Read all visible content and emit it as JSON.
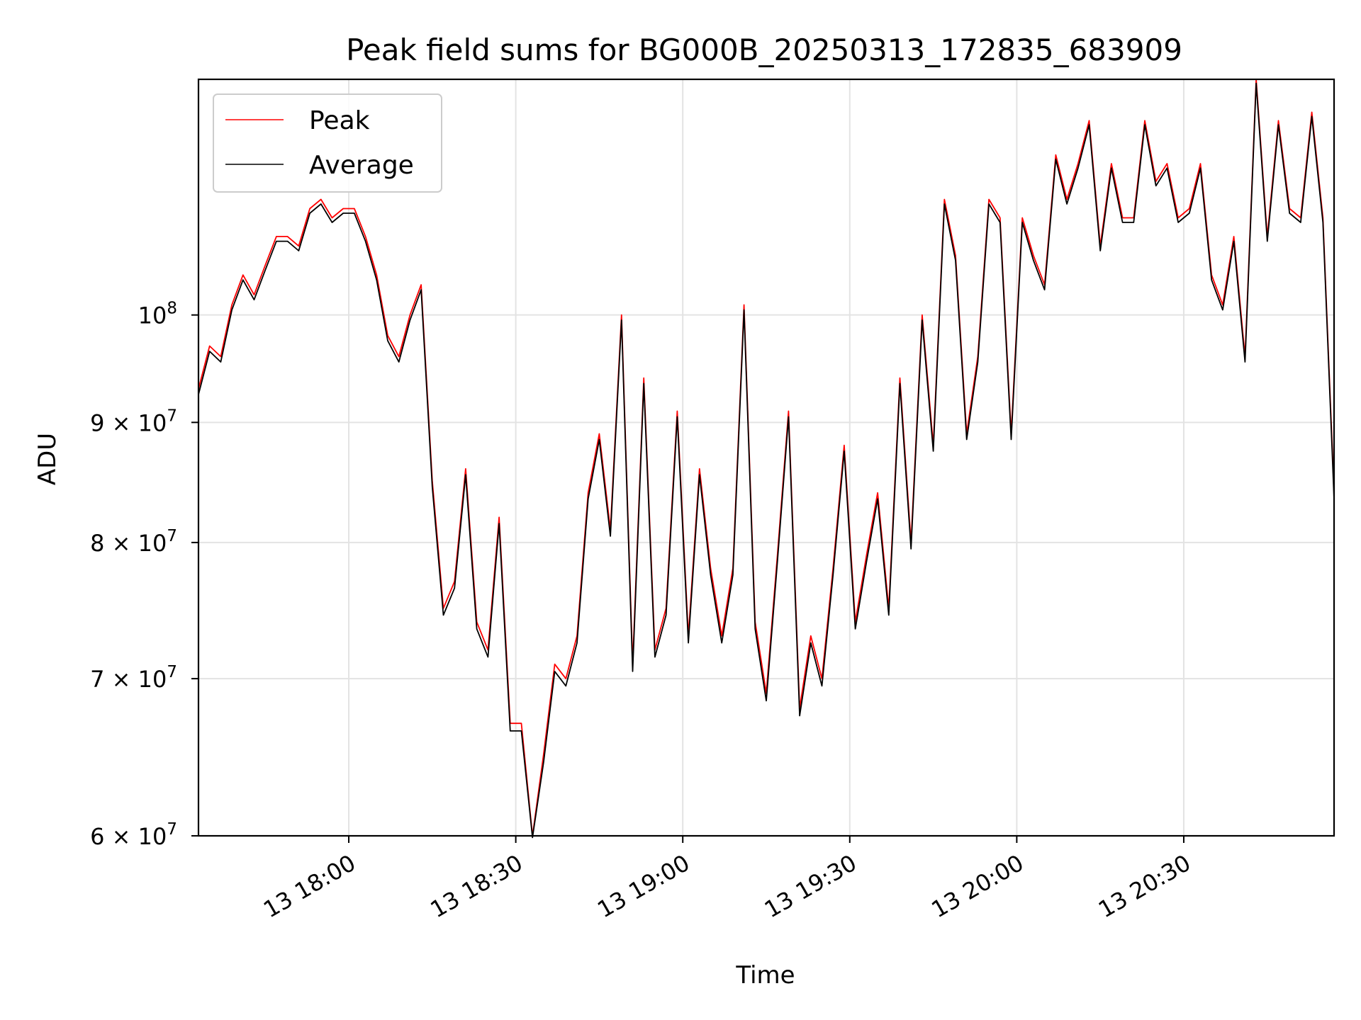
{
  "chart_data": {
    "type": "line",
    "title": "Peak field sums for BG000B_20250313_172835_683909",
    "xlabel": "Time",
    "ylabel": "ADU",
    "x_scale": "time",
    "y_scale": "log",
    "grid": true,
    "legend_position": "top-left",
    "xlim": [
      "2025-03-13 17:33",
      "2025-03-13 20:57"
    ],
    "ylim": [
      60000000,
      126000000
    ],
    "x_ticks": [
      {
        "time": "2025-03-13 18:00",
        "label": "13 18:00"
      },
      {
        "time": "2025-03-13 18:30",
        "label": "13 18:30"
      },
      {
        "time": "2025-03-13 19:00",
        "label": "13 19:00"
      },
      {
        "time": "2025-03-13 19:30",
        "label": "13 19:30"
      },
      {
        "time": "2025-03-13 20:00",
        "label": "13 20:00"
      },
      {
        "time": "2025-03-13 20:30",
        "label": "13 20:30"
      }
    ],
    "y_ticks": [
      {
        "value": 60000000,
        "label": "6 × 10",
        "exp": "7"
      },
      {
        "value": 70000000,
        "label": "7 × 10",
        "exp": "7"
      },
      {
        "value": 80000000,
        "label": "8 × 10",
        "exp": "7"
      },
      {
        "value": 90000000,
        "label": "9 × 10",
        "exp": "7"
      },
      {
        "value": 100000000,
        "label": "10",
        "exp": "8"
      }
    ],
    "x": [
      "17:33",
      "17:35",
      "17:37",
      "17:39",
      "17:41",
      "17:43",
      "17:45",
      "17:47",
      "17:49",
      "17:51",
      "17:53",
      "17:55",
      "17:57",
      "17:59",
      "18:01",
      "18:03",
      "18:05",
      "18:07",
      "18:09",
      "18:11",
      "18:13",
      "18:15",
      "18:17",
      "18:19",
      "18:21",
      "18:23",
      "18:25",
      "18:27",
      "18:29",
      "18:31",
      "18:33",
      "18:35",
      "18:37",
      "18:39",
      "18:41",
      "18:43",
      "18:45",
      "18:47",
      "18:49",
      "18:51",
      "18:53",
      "18:55",
      "18:57",
      "18:59",
      "19:01",
      "19:03",
      "19:05",
      "19:07",
      "19:09",
      "19:11",
      "19:13",
      "19:15",
      "19:17",
      "19:19",
      "19:21",
      "19:23",
      "19:25",
      "19:27",
      "19:29",
      "19:31",
      "19:33",
      "19:35",
      "19:37",
      "19:39",
      "19:41",
      "19:43",
      "19:45",
      "19:47",
      "19:49",
      "19:51",
      "19:53",
      "19:55",
      "19:57",
      "19:59",
      "20:01",
      "20:03",
      "20:05",
      "20:07",
      "20:09",
      "20:11",
      "20:13",
      "20:15",
      "20:17",
      "20:19",
      "20:21",
      "20:23",
      "20:25",
      "20:27",
      "20:29",
      "20:31",
      "20:33",
      "20:35",
      "20:37",
      "20:39",
      "20:41",
      "20:43",
      "20:45",
      "20:47",
      "20:49",
      "20:51",
      "20:53",
      "20:55",
      "20:57"
    ],
    "series": [
      {
        "name": "Peak",
        "color": "#ff0000",
        "values": [
          93,
          97,
          96,
          101,
          104,
          102,
          105,
          108,
          108,
          107,
          111,
          112,
          110,
          111,
          111,
          108,
          104,
          98,
          96,
          100,
          103,
          85,
          75,
          77,
          86,
          74,
          72,
          82,
          67,
          67,
          60,
          65,
          71,
          70,
          73,
          84,
          89,
          81,
          100,
          71,
          94,
          72,
          75,
          91,
          73,
          86,
          78,
          73,
          78,
          101,
          74,
          69,
          79,
          91,
          68,
          73,
          70,
          78,
          88,
          74,
          79,
          84,
          75,
          94,
          80,
          100,
          88,
          112,
          106,
          89,
          96,
          112,
          110,
          89,
          110,
          106,
          103,
          117,
          112,
          116,
          121,
          107,
          116,
          110,
          110,
          121,
          114,
          116,
          110,
          111,
          116,
          104,
          101,
          108,
          96,
          126,
          108,
          121,
          111,
          110,
          122,
          110,
          84
        ]
      },
      {
        "name": "Average",
        "color": "#000000",
        "values": [
          92.5,
          96.5,
          95.5,
          100.5,
          103.5,
          101.5,
          104.5,
          107.5,
          107.5,
          106.5,
          110.5,
          111.5,
          109.5,
          110.5,
          110.5,
          107.5,
          103.5,
          97.5,
          95.5,
          99.5,
          102.5,
          84.5,
          74.5,
          76.5,
          85.5,
          73.5,
          71.5,
          81.5,
          66.5,
          66.5,
          59.9,
          64.5,
          70.5,
          69.5,
          72.5,
          83.5,
          88.5,
          80.5,
          99.5,
          70.5,
          93.5,
          71.5,
          74.5,
          90.5,
          72.5,
          85.5,
          77.5,
          72.5,
          77.5,
          100.5,
          73.5,
          68.5,
          78.5,
          90.5,
          67.5,
          72.5,
          69.5,
          77.5,
          87.5,
          73.5,
          78.5,
          83.5,
          74.5,
          93.5,
          79.5,
          99.5,
          87.5,
          111.5,
          105.5,
          88.5,
          95.5,
          111.5,
          109.5,
          88.5,
          109.5,
          105.5,
          102.5,
          116.5,
          111.5,
          115.5,
          120.5,
          106.5,
          115.5,
          109.5,
          109.5,
          120.5,
          113.5,
          115.5,
          109.5,
          110.5,
          115.5,
          103.5,
          100.5,
          107.5,
          95.5,
          125.5,
          107.5,
          120.5,
          110.5,
          109.5,
          121.5,
          109.5,
          83.5
        ]
      }
    ],
    "values_unit": "ADU (millions)"
  }
}
